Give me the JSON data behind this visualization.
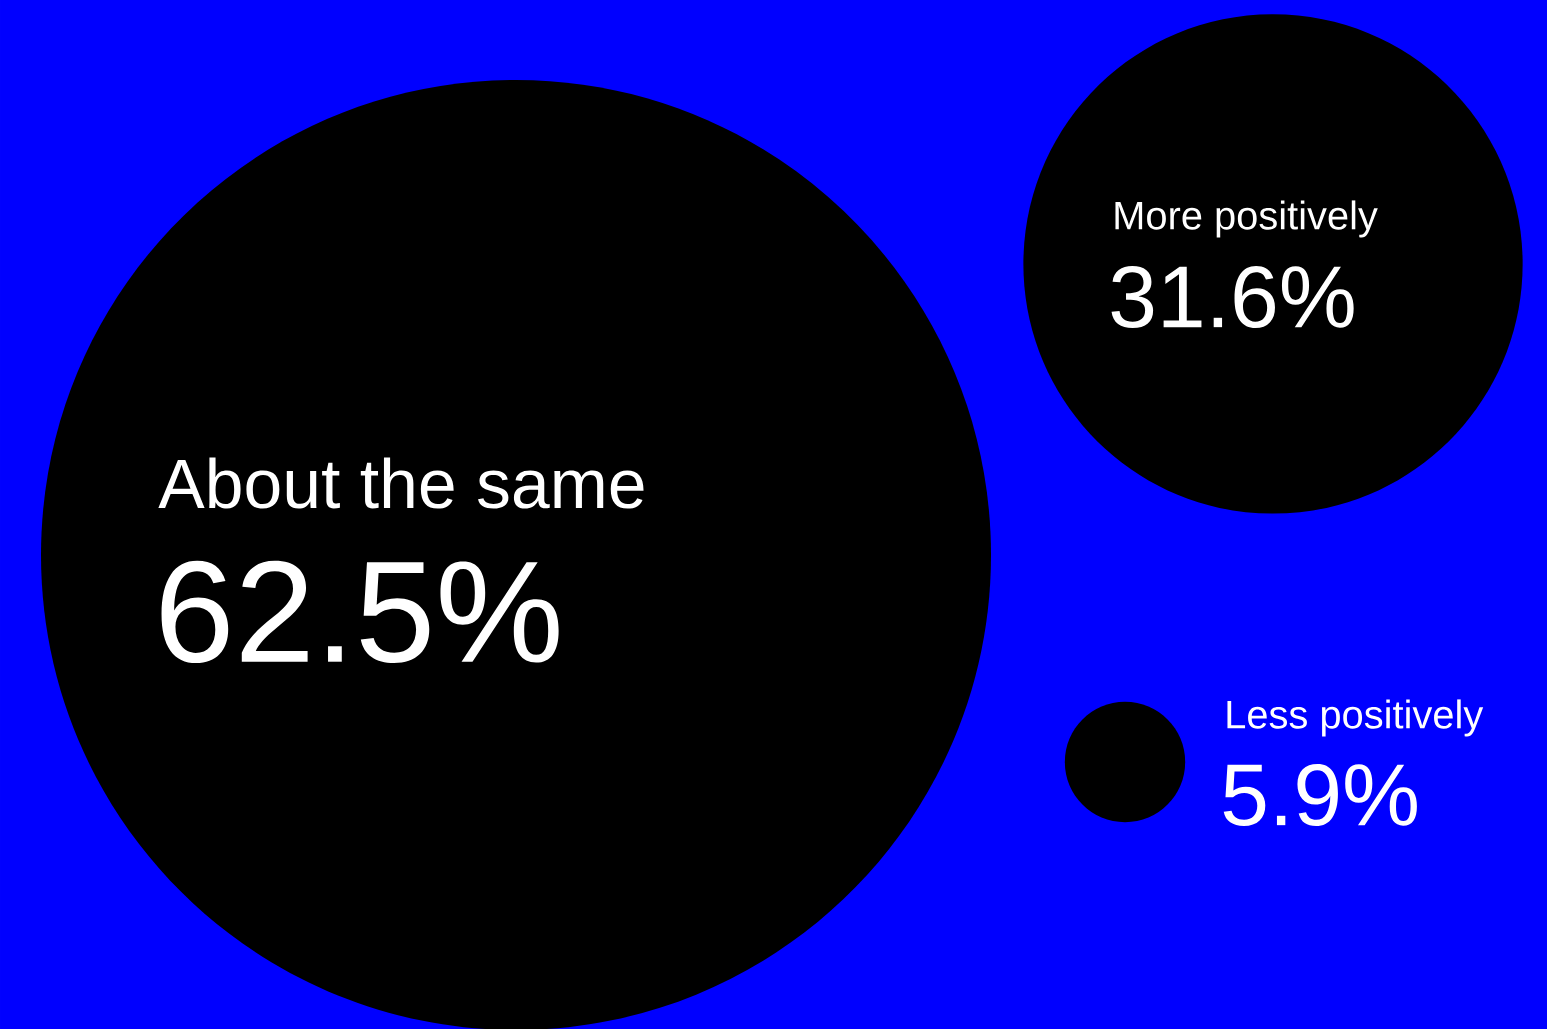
{
  "chart_data": {
    "type": "other",
    "categories": [
      "About the same",
      "More positively",
      "Less positively"
    ],
    "values": [
      62.5,
      31.6,
      5.9
    ],
    "value_labels": [
      "62.5%",
      "31.6%",
      "5.9%"
    ],
    "color": "#000000"
  }
}
